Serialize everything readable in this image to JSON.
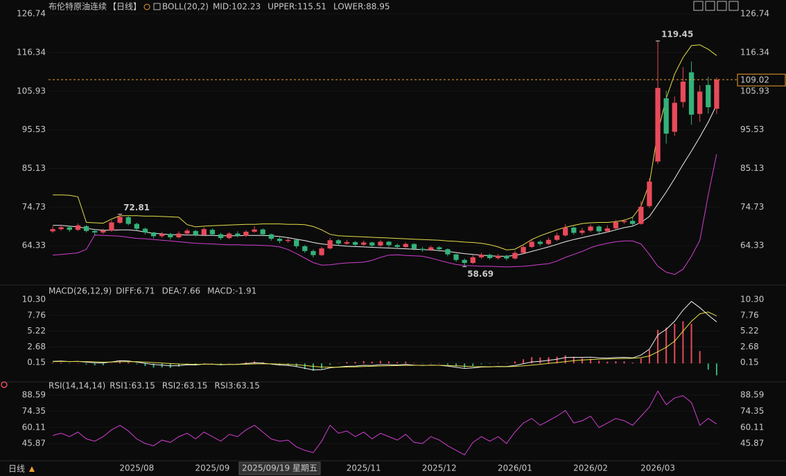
{
  "chart_data": [
    {
      "type": "candlestick",
      "title": "布伦特原油连续",
      "period": "【日线】",
      "indicator": "BOLL(20,2)",
      "period_label": "日线",
      "highlight_category": "2025/09/19 星期五",
      "up_color": "#e84a5a",
      "down_color": "#33b27a",
      "categories": [
        null,
        null,
        null,
        null,
        null,
        null,
        null,
        null,
        null,
        null,
        "2025/08",
        null,
        null,
        null,
        null,
        null,
        null,
        null,
        null,
        "2025/09",
        null,
        null,
        null,
        null,
        null,
        null,
        null,
        "2025/09/19 星期五",
        null,
        null,
        null,
        null,
        null,
        null,
        null,
        null,
        null,
        "2025/11",
        null,
        null,
        null,
        null,
        null,
        null,
        null,
        null,
        "2025/12",
        null,
        null,
        null,
        null,
        null,
        null,
        null,
        null,
        "2026/01",
        null,
        null,
        null,
        null,
        null,
        null,
        null,
        null,
        "2026/02",
        null,
        null,
        null,
        null,
        null,
        null,
        null,
        "2026/03",
        null,
        null,
        null,
        null,
        null,
        null,
        null
      ],
      "open": [
        68.2,
        68.8,
        69.3,
        68.6,
        69.6,
        68.3,
        67.9,
        68.4,
        70.5,
        72.0,
        70.2,
        68.9,
        67.9,
        66.9,
        67.5,
        66.6,
        67.6,
        68.3,
        67.2,
        68.6,
        67.4,
        66.4,
        67.6,
        67.0,
        68.1,
        68.7,
        67.4,
        66.2,
        65.6,
        65.9,
        64.2,
        62.9,
        61.8,
        63.6,
        65.8,
        64.9,
        65.3,
        64.6,
        65.2,
        64.4,
        65.4,
        64.5,
        64.0,
        64.8,
        63.5,
        63.2,
        63.9,
        63.4,
        62.0,
        60.5,
        59.7,
        61.2,
        61.9,
        61.0,
        61.6,
        60.9,
        62.4,
        64.0,
        65.4,
        64.8,
        65.9,
        67.1,
        69.2,
        67.8,
        68.4,
        69.5,
        68.2,
        69.0,
        70.7,
        71.0,
        70.2,
        75.0,
        87.0,
        104.0,
        95.0,
        103.0,
        111.0,
        99.8,
        107.6,
        101.2
      ],
      "high": [
        69.5,
        70.0,
        69.8,
        70.3,
        69.9,
        68.7,
        68.9,
        71.2,
        72.81,
        72.4,
        70.5,
        69.2,
        68.1,
        68.0,
        67.8,
        68.2,
        68.9,
        68.6,
        69.3,
        69.0,
        67.8,
        68.0,
        68.2,
        68.5,
        69.6,
        69.0,
        67.6,
        66.8,
        66.4,
        66.0,
        64.5,
        63.3,
        64.0,
        66.4,
        66.1,
        65.9,
        65.6,
        65.7,
        65.4,
        65.9,
        65.6,
        64.9,
        65.2,
        65.0,
        64.0,
        64.3,
        64.2,
        63.6,
        62.2,
        60.9,
        61.8,
        62.5,
        62.2,
        62.1,
        61.9,
        63.0,
        64.6,
        65.9,
        65.8,
        66.5,
        67.8,
        70.2,
        69.6,
        69.1,
        70.0,
        69.8,
        69.8,
        71.3,
        71.5,
        71.9,
        76.3,
        82.5,
        119.45,
        106.0,
        104.5,
        112.4,
        113.9,
        107.5,
        109.8,
        109.6
      ],
      "low": [
        67.8,
        68.4,
        68.1,
        68.3,
        67.9,
        67.2,
        67.5,
        68.1,
        70.2,
        69.8,
        68.5,
        67.4,
        66.3,
        66.5,
        66.0,
        66.3,
        67.2,
        66.8,
        66.9,
        67.0,
        65.9,
        66.1,
        66.6,
        66.7,
        67.8,
        66.9,
        65.7,
        65.0,
        65.1,
        63.6,
        62.4,
        61.2,
        61.5,
        63.3,
        64.5,
        64.6,
        64.2,
        64.3,
        63.9,
        64.1,
        64.0,
        63.5,
        63.7,
        63.1,
        62.7,
        62.9,
        62.8,
        61.5,
        60.0,
        58.69,
        59.4,
        60.8,
        60.6,
        60.6,
        60.4,
        60.6,
        62.0,
        63.7,
        64.3,
        64.5,
        65.6,
        66.8,
        67.3,
        67.2,
        68.0,
        67.6,
        67.9,
        68.7,
        70.2,
        69.8,
        70.0,
        74.5,
        86.3,
        91.8,
        93.9,
        101.5,
        96.9,
        97.7,
        99.9,
        99.8
      ],
      "close": [
        68.8,
        69.3,
        68.6,
        69.8,
        68.3,
        67.9,
        68.4,
        70.6,
        72.1,
        70.2,
        68.9,
        67.9,
        66.9,
        67.5,
        66.6,
        67.6,
        68.4,
        67.2,
        68.8,
        67.4,
        66.4,
        67.6,
        67.0,
        68.1,
        68.7,
        67.4,
        66.2,
        65.6,
        65.9,
        64.2,
        62.9,
        61.8,
        63.6,
        65.8,
        64.9,
        65.3,
        64.6,
        65.2,
        64.4,
        65.4,
        64.5,
        64.0,
        64.8,
        63.5,
        63.2,
        63.9,
        63.4,
        62.0,
        60.5,
        59.7,
        61.2,
        61.9,
        61.0,
        61.6,
        60.9,
        62.4,
        64.0,
        65.4,
        64.8,
        65.9,
        67.1,
        69.2,
        67.8,
        68.4,
        69.5,
        68.2,
        69.0,
        70.7,
        71.0,
        70.2,
        74.8,
        81.6,
        106.8,
        94.5,
        102.8,
        108.5,
        99.6,
        105.8,
        101.6,
        109.02
      ],
      "series": [
        {
          "name": "MID:102.23",
          "color": "#f2f2f2",
          "values": [
            69.8,
            69.8,
            69.6,
            69.4,
            69.0,
            68.7,
            68.5,
            68.5,
            68.6,
            68.6,
            68.4,
            68.0,
            67.7,
            67.5,
            67.3,
            67.3,
            67.2,
            67.2,
            67.1,
            67.1,
            67.0,
            67.0,
            67.0,
            67.1,
            67.1,
            67.1,
            67.0,
            66.8,
            66.5,
            66.1,
            65.7,
            65.2,
            64.8,
            64.6,
            64.4,
            64.2,
            64.1,
            64.0,
            63.9,
            63.8,
            63.7,
            63.6,
            63.5,
            63.4,
            63.3,
            63.2,
            63.0,
            62.8,
            62.5,
            62.2,
            62.0,
            61.8,
            61.6,
            61.5,
            61.5,
            61.7,
            62.2,
            62.8,
            63.4,
            64.0,
            64.7,
            65.4,
            66.0,
            66.5,
            67.0,
            67.5,
            68.0,
            68.6,
            69.2,
            69.6,
            70.6,
            72.2,
            75.5,
            78.8,
            82.4,
            86.2,
            89.8,
            93.6,
            97.6,
            102.23
          ]
        },
        {
          "name": "UPPER:115.51",
          "color": "#e6e04a",
          "values": [
            78.0,
            78.0,
            77.9,
            77.5,
            70.6,
            70.5,
            70.4,
            71.5,
            72.4,
            72.4,
            72.4,
            72.3,
            72.3,
            72.2,
            72.1,
            72.0,
            70.0,
            69.4,
            69.6,
            69.7,
            69.8,
            69.9,
            70.0,
            70.1,
            70.1,
            70.2,
            70.2,
            70.2,
            70.1,
            70.1,
            70.0,
            69.5,
            68.6,
            67.4,
            67.0,
            66.9,
            66.8,
            66.7,
            66.6,
            66.5,
            66.4,
            66.3,
            66.2,
            66.1,
            66.0,
            65.9,
            65.8,
            65.6,
            65.5,
            65.3,
            65.2,
            65.0,
            64.6,
            64.0,
            63.2,
            63.4,
            64.6,
            66.0,
            67.0,
            67.8,
            68.6,
            69.3,
            69.8,
            70.3,
            70.5,
            70.6,
            70.6,
            70.8,
            71.2,
            72.0,
            75.0,
            81.0,
            95.0,
            104.0,
            110.5,
            115.0,
            118.2,
            118.4,
            117.2,
            115.51
          ]
        },
        {
          "name": "LOWER:88.95",
          "color": "#d23fd2",
          "values": [
            61.8,
            62.0,
            62.2,
            62.4,
            63.4,
            67.2,
            67.1,
            67.0,
            66.9,
            66.6,
            66.3,
            66.2,
            66.0,
            65.8,
            65.6,
            65.4,
            65.2,
            65.0,
            64.9,
            64.8,
            64.7,
            64.6,
            64.6,
            64.5,
            64.5,
            64.4,
            64.3,
            64.0,
            63.3,
            62.2,
            61.0,
            59.8,
            59.1,
            59.2,
            59.5,
            59.7,
            59.8,
            59.9,
            60.4,
            61.2,
            61.8,
            61.9,
            61.7,
            61.6,
            61.5,
            61.0,
            60.4,
            59.8,
            59.3,
            59.0,
            58.9,
            58.8,
            58.8,
            58.7,
            58.6,
            58.7,
            58.8,
            59.0,
            59.3,
            59.5,
            60.2,
            61.2,
            62.0,
            62.8,
            63.8,
            64.5,
            65.0,
            65.4,
            65.6,
            65.6,
            64.8,
            62.0,
            58.8,
            57.2,
            56.6,
            58.0,
            61.5,
            65.8,
            78.0,
            88.95
          ]
        }
      ],
      "marked_highs": [
        119.45,
        72.81
      ],
      "marked_lows": [
        58.69
      ],
      "ylim": [
        54.49,
        127.86
      ],
      "yticks": [
        64.33,
        74.73,
        85.13,
        95.53,
        105.93,
        116.34,
        126.74
      ]
    },
    {
      "type": "macd",
      "title": "MACD(26,12,9)",
      "up_color": "#e84a5a",
      "down_color": "#33b27a",
      "series": [
        {
          "name": "DIFF:6.71",
          "color": "#f2f2f2",
          "values": [
            0.35,
            0.38,
            0.3,
            0.34,
            0.22,
            0.1,
            0.08,
            0.25,
            0.45,
            0.4,
            0.22,
            0.02,
            -0.18,
            -0.25,
            -0.38,
            -0.35,
            -0.22,
            -0.24,
            -0.1,
            -0.12,
            -0.22,
            -0.15,
            -0.14,
            -0.02,
            0.1,
            0.05,
            -0.1,
            -0.25,
            -0.32,
            -0.5,
            -0.78,
            -1.05,
            -1.0,
            -0.7,
            -0.58,
            -0.45,
            -0.42,
            -0.3,
            -0.32,
            -0.2,
            -0.2,
            -0.24,
            -0.16,
            -0.26,
            -0.32,
            -0.28,
            -0.3,
            -0.42,
            -0.62,
            -0.8,
            -0.72,
            -0.58,
            -0.56,
            -0.48,
            -0.5,
            -0.32,
            -0.05,
            0.25,
            0.35,
            0.5,
            0.68,
            0.95,
            0.98,
            0.98,
            1.02,
            0.9,
            0.86,
            0.95,
            0.98,
            0.9,
            1.35,
            2.3,
            4.6,
            5.5,
            6.8,
            8.6,
            10.0,
            9.0,
            7.8,
            6.71
          ]
        },
        {
          "name": "DEA:7.66",
          "color": "#e6e04a",
          "values": [
            0.3,
            0.32,
            0.31,
            0.32,
            0.3,
            0.26,
            0.22,
            0.23,
            0.27,
            0.3,
            0.28,
            0.23,
            0.15,
            0.07,
            -0.02,
            -0.09,
            -0.12,
            -0.14,
            -0.13,
            -0.13,
            -0.15,
            -0.15,
            -0.15,
            -0.12,
            -0.08,
            -0.05,
            -0.06,
            -0.1,
            -0.14,
            -0.21,
            -0.32,
            -0.47,
            -0.58,
            -0.6,
            -0.6,
            -0.57,
            -0.54,
            -0.49,
            -0.46,
            -0.41,
            -0.37,
            -0.34,
            -0.31,
            -0.3,
            -0.3,
            -0.3,
            -0.3,
            -0.32,
            -0.38,
            -0.46,
            -0.51,
            -0.52,
            -0.53,
            -0.52,
            -0.52,
            -0.48,
            -0.39,
            -0.26,
            -0.14,
            0,
            0.14,
            0.3,
            0.44,
            0.55,
            0.64,
            0.69,
            0.72,
            0.77,
            0.81,
            0.83,
            0.94,
            1.21,
            1.89,
            2.61,
            3.6,
            5.2,
            6.8,
            8.0,
            8.3,
            7.66
          ]
        }
      ],
      "histogram": {
        "name": "MACD:-1.91",
        "color": "#d23fd2",
        "values": [
          0.1,
          0.12,
          -0.02,
          0.04,
          -0.16,
          -0.32,
          -0.28,
          0.04,
          0.36,
          0.2,
          -0.12,
          -0.42,
          -0.66,
          -0.64,
          -0.72,
          -0.52,
          -0.2,
          -0.2,
          0.06,
          0.02,
          -0.14,
          0,
          0.02,
          0.2,
          0.36,
          0.2,
          -0.08,
          -0.3,
          -0.36,
          -0.58,
          -0.92,
          -1.16,
          -0.84,
          -0.2,
          0.04,
          0.24,
          0.24,
          0.38,
          0.28,
          0.42,
          0.34,
          0.2,
          0.3,
          0.08,
          -0.04,
          0.04,
          0,
          -0.2,
          -0.48,
          -0.68,
          -0.42,
          -0.12,
          -0.06,
          0.08,
          0.04,
          0.32,
          0.68,
          1.02,
          0.98,
          1.0,
          1.08,
          1.3,
          1.08,
          0.86,
          0.76,
          0.42,
          0.28,
          0.36,
          0.34,
          0.14,
          0.82,
          2.18,
          5.42,
          5.78,
          6.4,
          6.8,
          6.4,
          2.0,
          -1.0,
          -1.91
        ]
      },
      "ylim": [
        -2.53,
        10.86
      ],
      "yticks": [
        0.15,
        2.68,
        5.22,
        7.76,
        {
          "value": 10.3,
          "label": "10.30"
        }
      ]
    },
    {
      "type": "rsi",
      "title": "RSI(14,14,14)",
      "line_color": "#d23fd2",
      "legend": [
        {
          "name": "RSI1:63.15",
          "color": "#f2f2f2"
        },
        {
          "name": "RSI2:63.15",
          "color": "#e6e04a"
        },
        {
          "name": "RSI3:63.15",
          "color": "#d23fd2"
        }
      ],
      "values": [
        53,
        55,
        52,
        56,
        50,
        48,
        52,
        58,
        62,
        57,
        50,
        46,
        44,
        49,
        47,
        52,
        55,
        50,
        56,
        52,
        48,
        54,
        52,
        58,
        62,
        56,
        50,
        48,
        49,
        43,
        40,
        38,
        48,
        62,
        55,
        57,
        52,
        56,
        50,
        55,
        52,
        49,
        54,
        47,
        46,
        52,
        49,
        44,
        40,
        36,
        47,
        52,
        48,
        52,
        46,
        56,
        64,
        68,
        62,
        66,
        70,
        75,
        64,
        66,
        70,
        60,
        64,
        68,
        66,
        62,
        70,
        78,
        92,
        80,
        86,
        88,
        82,
        62,
        68,
        63.15
      ],
      "ylim": [
        32.03,
        95.21
      ],
      "yticks": [
        45.87,
        60.11,
        74.35,
        88.59
      ]
    }
  ]
}
